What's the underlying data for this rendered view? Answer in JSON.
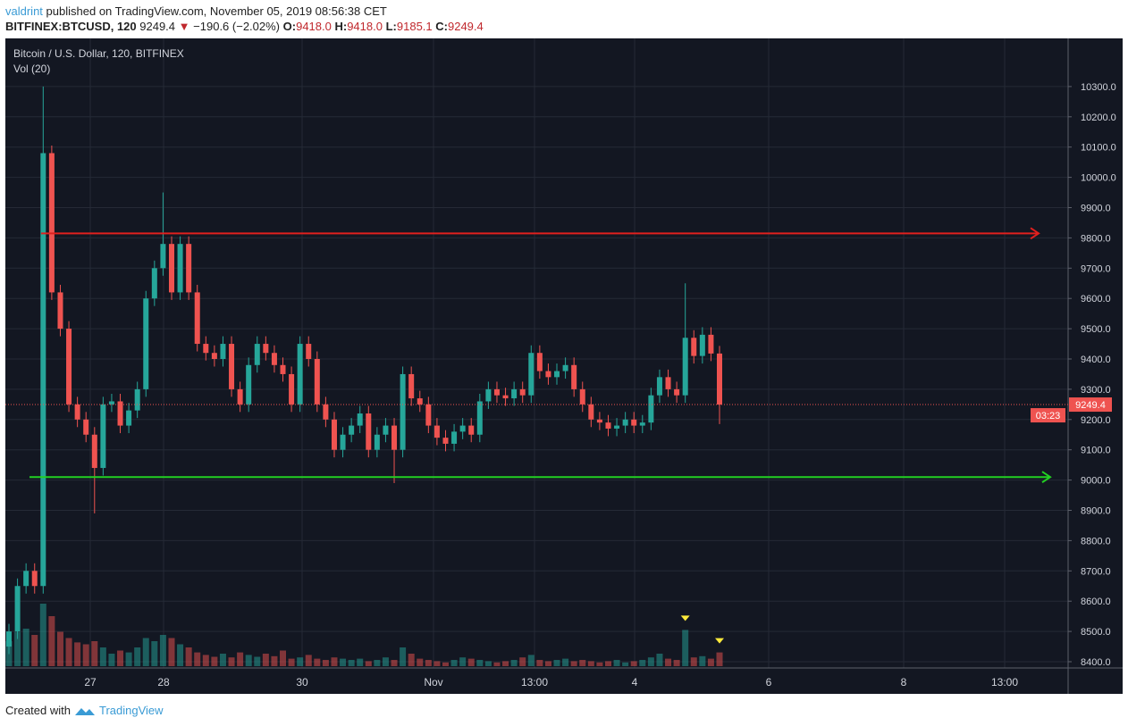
{
  "header": {
    "author": "valdrint",
    "published": "published on TradingView.com, November 05, 2019 08:56:38 CET",
    "symbol": "BITFINEX:BTCUSD, 120",
    "last": "9249.4",
    "change": "−190.6 (−2.02%)",
    "o_label": "O:",
    "o": "9418.0",
    "h_label": "H:",
    "h": "9418.0",
    "l_label": "L:",
    "l": "9185.1",
    "c_label": "C:",
    "c": "9249.4"
  },
  "legend": {
    "title": "Bitcoin / U.S. Dollar, 120, BITFINEX",
    "volume": "Vol (20)"
  },
  "footer": {
    "created": "Created with",
    "brand": "TradingView"
  },
  "colors": {
    "up": "#26a69a",
    "down": "#ef5350",
    "resistance": "#e0201e",
    "support": "#22d022",
    "bg": "#131722",
    "grid": "#252a36",
    "marker": "#ffeb3b"
  },
  "chart_data": {
    "type": "candlestick",
    "y_ticks": [
      "10300.0",
      "10200.0",
      "10100.0",
      "10000.0",
      "9900.0",
      "9800.0",
      "9700.0",
      "9600.0",
      "9500.0",
      "9400.0",
      "9300.0",
      "9200.0",
      "9100.0",
      "9000.0",
      "8900.0",
      "8800.0",
      "8700.0",
      "8600.0",
      "8500.0",
      "8400.0"
    ],
    "ylim": [
      8380,
      10450
    ],
    "x_ticks": [
      "27",
      "28",
      "30",
      "Nov",
      "13:00",
      "4",
      "6",
      "8",
      "13:00"
    ],
    "first_open": 8450,
    "closes": [
      8500,
      8650,
      8700,
      8650,
      10080,
      9620,
      9500,
      9250,
      9200,
      9150,
      9040,
      9250,
      9260,
      9180,
      9230,
      9300,
      9600,
      9700,
      9780,
      9620,
      9780,
      9620,
      9450,
      9420,
      9400,
      9450,
      9300,
      9250,
      9380,
      9450,
      9420,
      9380,
      9350,
      9250,
      9450,
      9400,
      9250,
      9200,
      9100,
      9150,
      9180,
      9220,
      9100,
      9150,
      9180,
      9100,
      9350,
      9270,
      9250,
      9180,
      9140,
      9120,
      9160,
      9180,
      9150,
      9260,
      9300,
      9280,
      9270,
      9300,
      9280,
      9420,
      9360,
      9340,
      9360,
      9380,
      9300,
      9250,
      9200,
      9190,
      9170,
      9180,
      9200,
      9180,
      9190,
      9280,
      9340,
      9300,
      9280,
      9470,
      9410,
      9480,
      9418,
      9249.4
    ],
    "wick_overrides": [
      {
        "i": 4,
        "high": 10300
      },
      {
        "i": 18,
        "high": 9950
      },
      {
        "i": 10,
        "low": 8890
      },
      {
        "i": 45,
        "low": 8990
      },
      {
        "i": 79,
        "high": 9650
      },
      {
        "i": 83,
        "low": 9185.1
      }
    ],
    "volumes": [
      40,
      55,
      60,
      50,
      100,
      80,
      55,
      45,
      38,
      35,
      40,
      30,
      20,
      25,
      22,
      30,
      45,
      40,
      50,
      45,
      35,
      30,
      22,
      18,
      15,
      20,
      14,
      22,
      18,
      15,
      20,
      16,
      25,
      12,
      14,
      18,
      12,
      10,
      14,
      12,
      10,
      12,
      8,
      10,
      14,
      10,
      30,
      20,
      12,
      10,
      8,
      6,
      10,
      14,
      12,
      10,
      8,
      6,
      8,
      10,
      14,
      18,
      10,
      8,
      10,
      12,
      8,
      10,
      8,
      6,
      8,
      10,
      6,
      8,
      10,
      14,
      20,
      12,
      10,
      58,
      14,
      16,
      12,
      22
    ],
    "current_price": "9249.4",
    "countdown": "03:23",
    "resistance": 9815,
    "support": 9010,
    "markers": [
      {
        "i": 79,
        "pos": "above-volume"
      },
      {
        "i": 83,
        "pos": "above-volume"
      }
    ]
  }
}
